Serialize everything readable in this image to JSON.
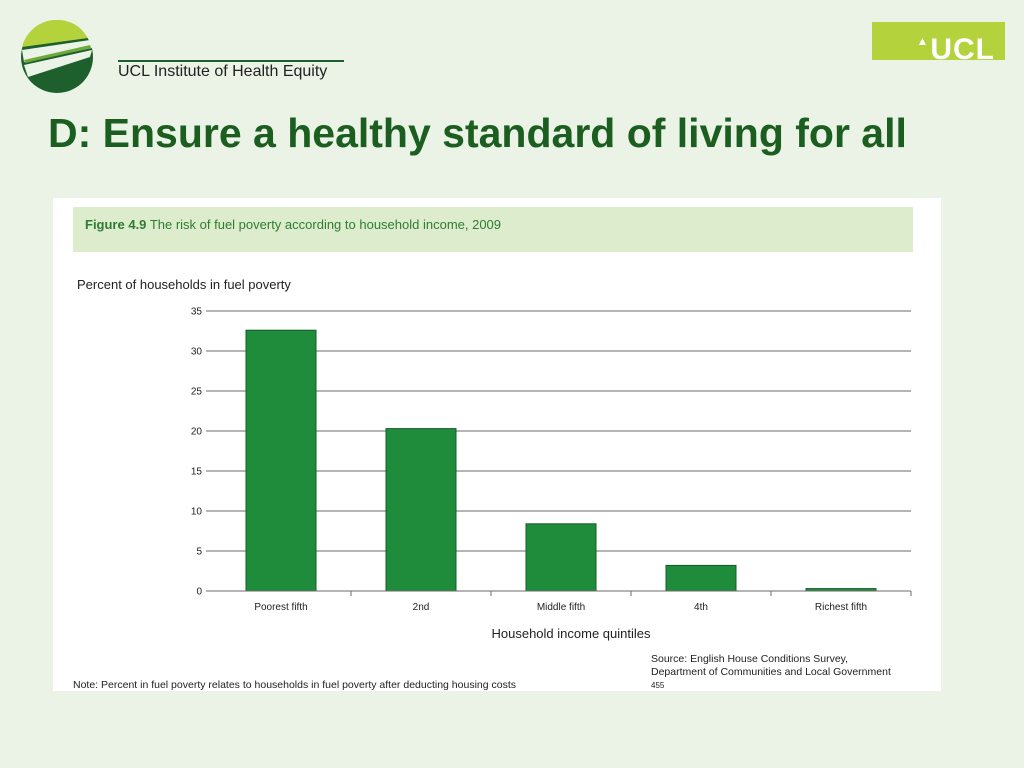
{
  "header": {
    "org_name": "UCL Institute of Health Equity",
    "ucl_badge": "UCL",
    "colors": {
      "background": "#eaf3e6",
      "title": "#1b5e20",
      "badge": "#b4d23c"
    }
  },
  "slide": {
    "title": "D: Ensure a healthy standard of living for all"
  },
  "figure": {
    "label": "Figure 4.9",
    "caption": "The risk of fuel poverty according to household income, 2009",
    "source_text": "Source: English House Conditions Survey, Department of Communities and Local Government",
    "source_ref": "455",
    "note": "Note: Percent in fuel poverty relates to households in fuel poverty after deducting housing costs"
  },
  "chart_data": {
    "type": "bar",
    "title": "The risk of fuel poverty according to household income, 2009",
    "xlabel": "Household income quintiles",
    "ylabel": "Percent of households in fuel poverty",
    "categories": [
      "Poorest fifth",
      "2nd",
      "Middle fifth",
      "4th",
      "Richest fifth"
    ],
    "values": [
      32.6,
      20.3,
      8.4,
      3.2,
      0.3
    ],
    "ylim": [
      0,
      35
    ],
    "yticks": [
      0,
      5,
      10,
      15,
      20,
      25,
      30,
      35
    ],
    "grid": true,
    "bar_color": "#1f8c3b"
  }
}
